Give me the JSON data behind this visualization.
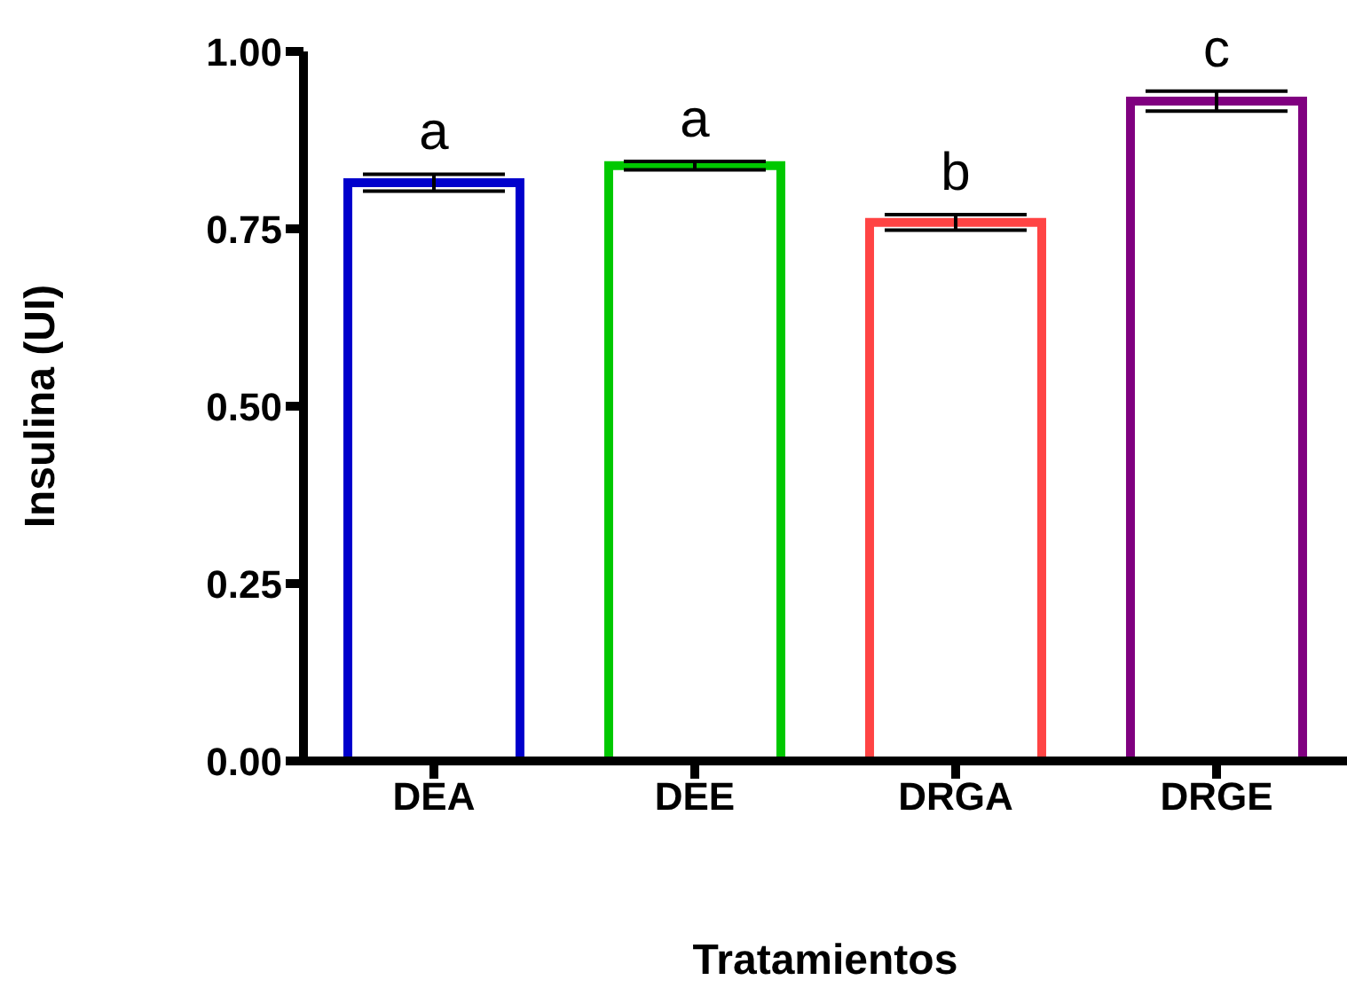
{
  "chart_data": {
    "type": "bar",
    "xlabel": "Tratamientos",
    "ylabel": "Insulina (UI)",
    "categories": [
      "DEA",
      "DEE",
      "DRGA",
      "DRGE"
    ],
    "values": [
      0.815,
      0.839,
      0.759,
      0.93
    ],
    "errors": [
      0.012,
      0.006,
      0.011,
      0.014
    ],
    "colors": [
      "#0000cc",
      "#00c800",
      "#ff4444",
      "#800080"
    ],
    "ylim": [
      0,
      1
    ],
    "yticks": [
      {
        "value": 0,
        "label": "0.00"
      },
      {
        "value": 0.25,
        "label": "0.25"
      },
      {
        "value": 0.5,
        "label": "0.50"
      },
      {
        "value": 0.75,
        "label": "0.75"
      },
      {
        "value": 1,
        "label": "1.00"
      }
    ],
    "grid": false,
    "legend": false,
    "annotations": [
      "a",
      "a",
      "b",
      "c"
    ]
  }
}
